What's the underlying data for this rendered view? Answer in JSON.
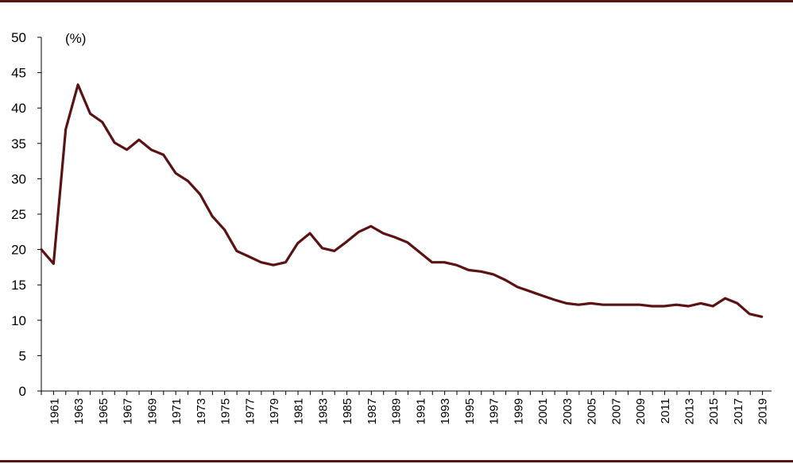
{
  "chart_data": {
    "type": "line",
    "title": "",
    "xlabel": "",
    "ylabel": "",
    "unit_label": "(%)",
    "ylim": [
      0,
      50
    ],
    "yticks": [
      0,
      5,
      10,
      15,
      20,
      25,
      30,
      35,
      40,
      45,
      50
    ],
    "xlim": [
      1961,
      2019
    ],
    "xtick_labels": [
      "1961",
      "1963",
      "1965",
      "1967",
      "1969",
      "1971",
      "1973",
      "1975",
      "1977",
      "1979",
      "1981",
      "1983",
      "1985",
      "1987",
      "1989",
      "1991",
      "1993",
      "1995",
      "1997",
      "1999",
      "2001",
      "2003",
      "2005",
      "2007",
      "2009",
      "2011",
      "2013",
      "2015",
      "2017",
      "2019"
    ],
    "grid": false,
    "legend": "none",
    "line_color": "#5a1212",
    "series": [
      {
        "x": [
          1960,
          1961,
          1962,
          1963,
          1964,
          1965,
          1966,
          1967,
          1968,
          1969,
          1970,
          1971,
          1972,
          1973,
          1974,
          1975,
          1976,
          1977,
          1978,
          1979,
          1980,
          1981,
          1982,
          1983,
          1984,
          1985,
          1986,
          1987,
          1988,
          1989,
          1990,
          1991,
          1992,
          1993,
          1994,
          1995,
          1996,
          1997,
          1998,
          1999,
          2000,
          2001,
          2002,
          2003,
          2004,
          2005,
          2006,
          2007,
          2008,
          2009,
          2010,
          2011,
          2012,
          2013,
          2014,
          2015,
          2016,
          2017,
          2018,
          2019
        ],
        "values": [
          20.0,
          18.0,
          37.0,
          43.3,
          39.2,
          38.0,
          35.1,
          34.1,
          35.5,
          34.1,
          33.4,
          30.8,
          29.7,
          27.8,
          24.7,
          22.8,
          19.8,
          19.0,
          18.2,
          17.8,
          18.2,
          20.9,
          22.3,
          20.2,
          19.8,
          21.1,
          22.5,
          23.3,
          22.3,
          21.7,
          21.0,
          19.6,
          18.2,
          18.2,
          17.8,
          17.1,
          16.9,
          16.5,
          15.7,
          14.7,
          14.1,
          13.5,
          12.9,
          12.4,
          12.2,
          12.4,
          12.2,
          12.2,
          12.2,
          12.2,
          12.0,
          12.0,
          12.2,
          12.0,
          12.4,
          12.0,
          13.1,
          12.4,
          10.9,
          10.5
        ]
      }
    ]
  }
}
